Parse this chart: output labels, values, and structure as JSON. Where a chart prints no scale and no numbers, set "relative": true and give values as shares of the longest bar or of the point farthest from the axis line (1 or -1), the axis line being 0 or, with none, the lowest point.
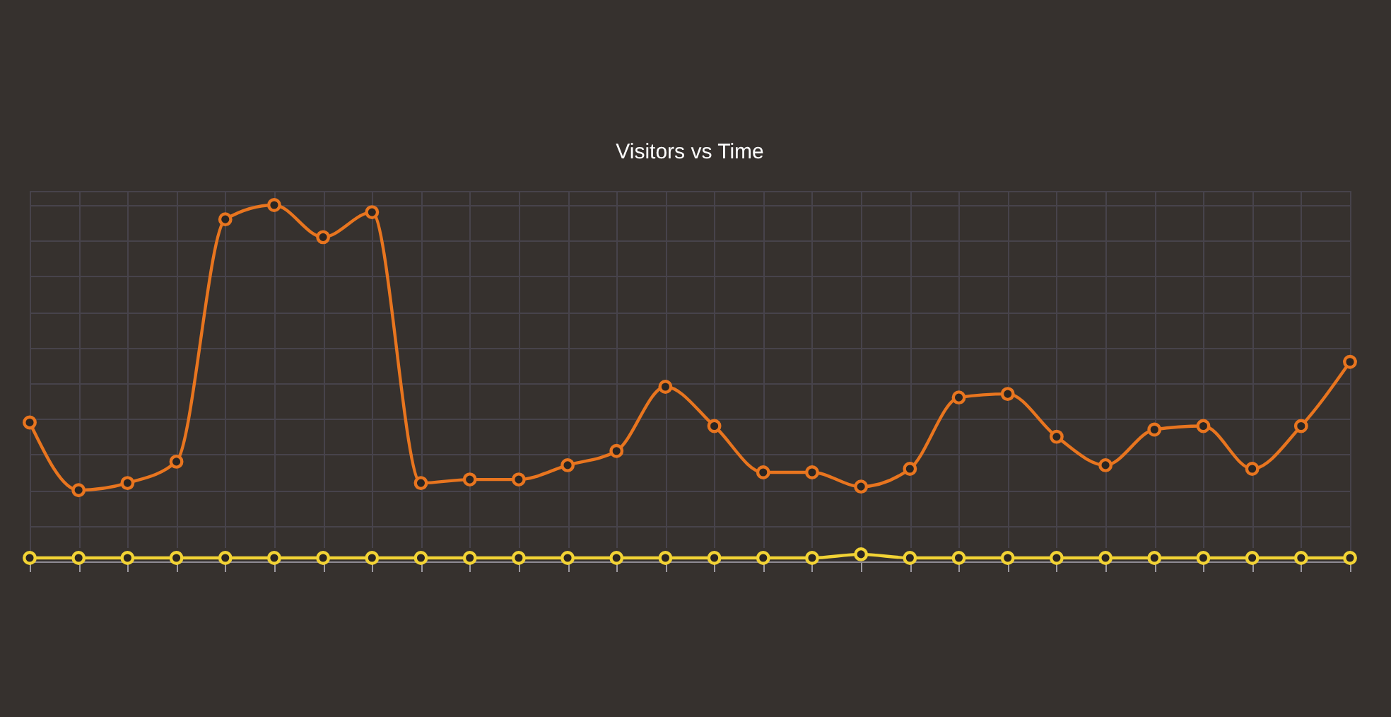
{
  "chart_data": {
    "type": "line",
    "title": "Visitors vs Time",
    "relative": true,
    "categories": [
      null,
      null,
      null,
      null,
      null,
      null,
      null,
      null,
      null,
      null,
      null,
      null,
      null,
      null,
      null,
      null,
      null,
      null,
      null,
      null,
      null,
      null,
      null,
      null,
      null,
      null,
      null,
      null
    ],
    "series": [
      {
        "color": "#e8751f",
        "values": [
          0.39,
          0.2,
          0.22,
          0.28,
          0.96,
          1.0,
          0.91,
          0.98,
          0.22,
          0.23,
          0.23,
          0.27,
          0.31,
          0.49,
          0.38,
          0.25,
          0.25,
          0.21,
          0.26,
          0.46,
          0.47,
          0.35,
          0.27,
          0.37,
          0.38,
          0.26,
          0.38,
          0.56
        ]
      },
      {
        "color": "#f2d335",
        "values": [
          0.01,
          0.01,
          0.01,
          0.01,
          0.01,
          0.01,
          0.01,
          0.01,
          0.01,
          0.01,
          0.01,
          0.01,
          0.01,
          0.01,
          0.01,
          0.01,
          0.01,
          0.02,
          0.01,
          0.01,
          0.01,
          0.01,
          0.01,
          0.01,
          0.01,
          0.01,
          0.01,
          0.01
        ]
      }
    ],
    "grid": true,
    "marker": "circle",
    "line_style": "solid"
  }
}
